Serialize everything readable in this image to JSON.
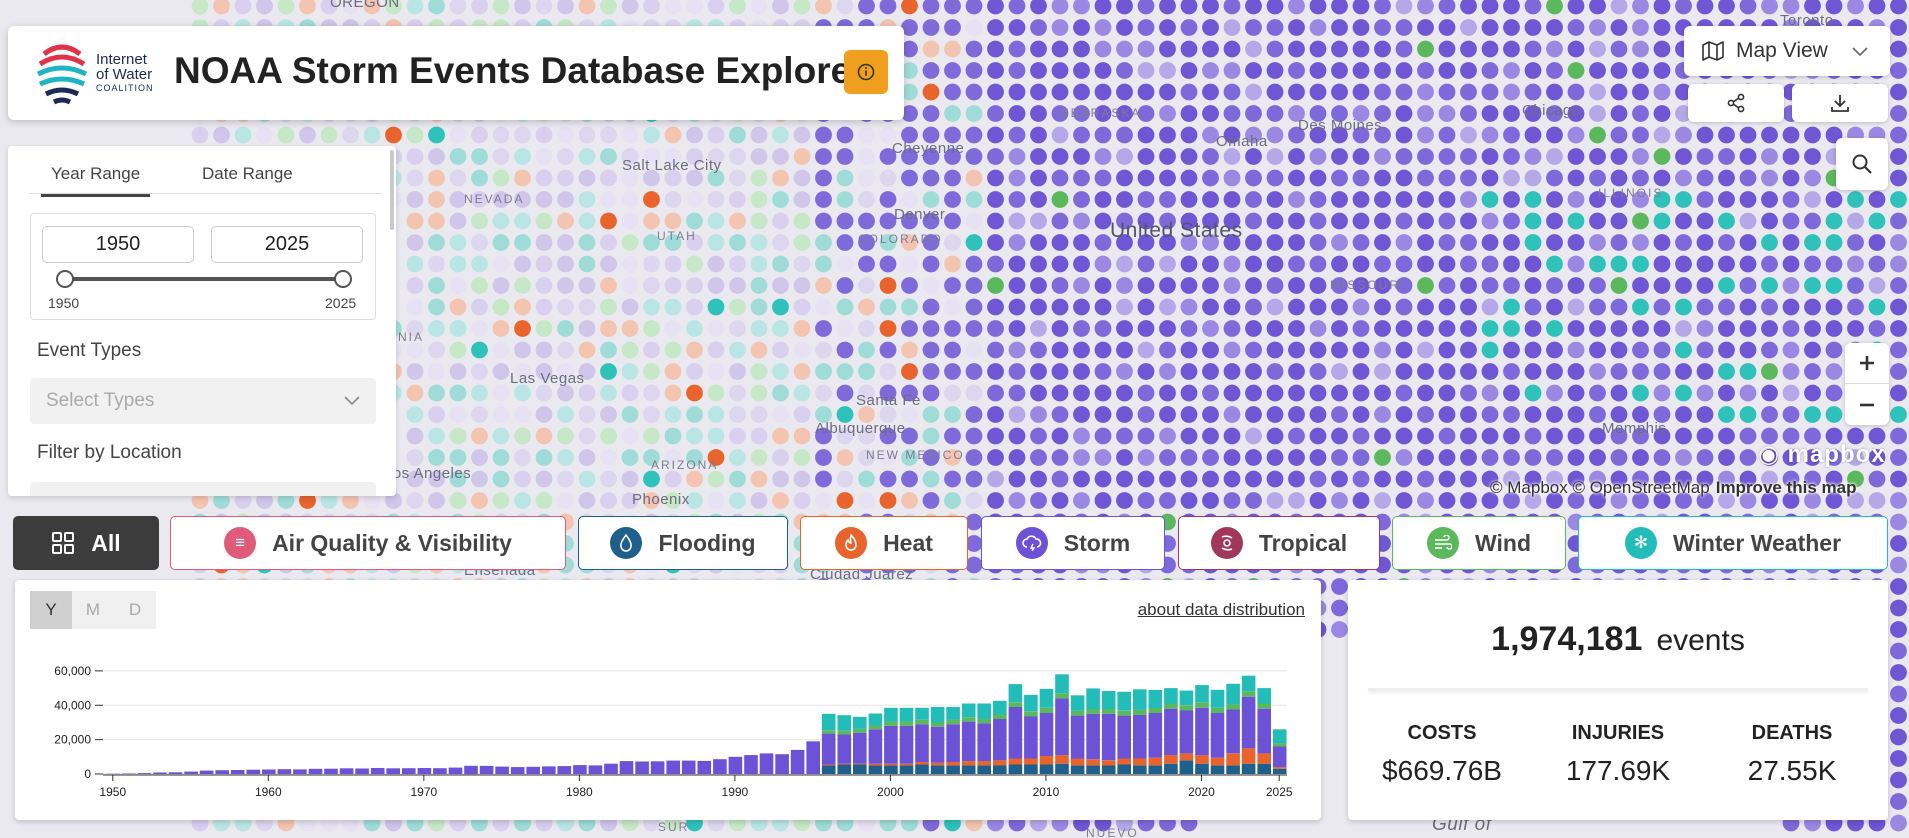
{
  "app": {
    "title": "NOAA Storm Events Database Explorer",
    "logo_lines": [
      "Internet",
      "of Water",
      "COALITION"
    ]
  },
  "filters": {
    "tabs": [
      "Year Range",
      "Date Range"
    ],
    "year_from": "1950",
    "year_to": "2025",
    "slider_min_label": "1950",
    "slider_max_label": "2025",
    "event_types_label": "Event Types",
    "event_types_placeholder": "Select Types",
    "location_label": "Filter by Location"
  },
  "categories": [
    {
      "label": "All",
      "icon": "grid-icon"
    },
    {
      "label": "Air Quality & Visibility",
      "icon": "haze-icon",
      "color": "#e05a7a"
    },
    {
      "label": "Flooding",
      "icon": "droplet-icon",
      "color": "#1e5f8c"
    },
    {
      "label": "Heat",
      "icon": "flame-icon",
      "color": "#e8642c"
    },
    {
      "label": "Storm",
      "icon": "cloud-lightning-icon",
      "color": "#6b52d6"
    },
    {
      "label": "Tropical",
      "icon": "hurricane-icon",
      "color": "#a1385c"
    },
    {
      "label": "Wind",
      "icon": "wind-icon",
      "color": "#5cb85c"
    },
    {
      "label": "Winter Weather",
      "icon": "snowflake-icon",
      "color": "#22bdb8"
    }
  ],
  "map": {
    "view_label": "Map View",
    "attribution": "© Mapbox © OpenStreetMap",
    "improve": "Improve this map",
    "brand": "mapbox",
    "labels": [
      "Salt Lake City",
      "NEVADA",
      "UTAH",
      "Cheyenne",
      "Denver",
      "COLORADO",
      "NEBRASKA",
      "United States",
      "Des Moines",
      "Chicago",
      "Omaha",
      "Las Vegas",
      "Los Angeles",
      "ARIZONA",
      "Phoenix",
      "Santa Fe",
      "Albuquerque",
      "NEW MEXICO",
      "Ensenada",
      "Ciudad Juárez",
      "Toronto",
      "OREGON",
      "ILLINOIS",
      "Memphis",
      "MISSOURI",
      "NIA",
      "SUR",
      "NUEVO",
      "Gulf of"
    ]
  },
  "chart": {
    "granularity": [
      "Y",
      "M",
      "D"
    ],
    "granularity_selected": "Y",
    "about_link": "about data distribution"
  },
  "chart_data": {
    "type": "bar",
    "stacked": true,
    "xlabel": "",
    "ylabel": "",
    "ylim": [
      0,
      70000
    ],
    "yticks": [
      "0",
      "20,000",
      "40,000",
      "60,000"
    ],
    "xticks": [
      "1950",
      "1960",
      "1970",
      "1980",
      "1990",
      "2000",
      "2010",
      "2020",
      "2025"
    ],
    "categories": [
      1950,
      1951,
      1952,
      1953,
      1954,
      1955,
      1956,
      1957,
      1958,
      1959,
      1960,
      1961,
      1962,
      1963,
      1964,
      1965,
      1966,
      1967,
      1968,
      1969,
      1970,
      1971,
      1972,
      1973,
      1974,
      1975,
      1976,
      1977,
      1978,
      1979,
      1980,
      1981,
      1982,
      1983,
      1984,
      1985,
      1986,
      1987,
      1988,
      1989,
      1990,
      1991,
      1992,
      1993,
      1994,
      1995,
      1996,
      1997,
      1998,
      1999,
      2000,
      2001,
      2002,
      2003,
      2004,
      2005,
      2006,
      2007,
      2008,
      2009,
      2010,
      2011,
      2012,
      2013,
      2014,
      2015,
      2016,
      2017,
      2018,
      2019,
      2020,
      2021,
      2022,
      2023,
      2024,
      2025
    ],
    "series": [
      {
        "name": "Flooding",
        "color": "#1e5f8c",
        "values": [
          0,
          0,
          0,
          0,
          0,
          0,
          0,
          0,
          0,
          0,
          0,
          0,
          0,
          0,
          0,
          0,
          0,
          0,
          0,
          0,
          0,
          0,
          0,
          0,
          0,
          0,
          0,
          0,
          0,
          0,
          0,
          0,
          0,
          0,
          0,
          0,
          0,
          0,
          0,
          0,
          0,
          0,
          0,
          0,
          0,
          0,
          5000,
          5500,
          5500,
          5000,
          5000,
          5000,
          5500,
          5000,
          5000,
          5000,
          5000,
          5000,
          5500,
          5500,
          5500,
          6000,
          5000,
          5000,
          5000,
          5500,
          5000,
          5000,
          6000,
          8000,
          6000,
          5000,
          5000,
          6000,
          6000,
          3000
        ]
      },
      {
        "name": "Heat",
        "color": "#e8642c",
        "values": [
          0,
          0,
          0,
          0,
          0,
          0,
          0,
          0,
          0,
          0,
          0,
          0,
          0,
          0,
          0,
          0,
          0,
          0,
          0,
          0,
          0,
          0,
          0,
          0,
          0,
          0,
          0,
          0,
          0,
          0,
          0,
          0,
          0,
          0,
          0,
          0,
          0,
          0,
          0,
          0,
          0,
          0,
          0,
          0,
          0,
          0,
          500,
          500,
          500,
          1000,
          1000,
          1000,
          1500,
          1500,
          2000,
          2500,
          2500,
          3000,
          3500,
          3500,
          5000,
          5000,
          4000,
          3500,
          3000,
          3500,
          4000,
          4500,
          5000,
          4000,
          5000,
          4500,
          7000,
          9000,
          6000,
          1000
        ]
      },
      {
        "name": "Storm",
        "color": "#6b52d6",
        "values": [
          200,
          300,
          500,
          900,
          1000,
          1400,
          2000,
          2200,
          2300,
          2500,
          2600,
          2800,
          2700,
          3000,
          3100,
          3300,
          3200,
          3500,
          3300,
          3400,
          3500,
          3400,
          3700,
          4800,
          4700,
          4300,
          4000,
          4200,
          4400,
          4600,
          5200,
          5000,
          6000,
          7500,
          7300,
          7400,
          7800,
          7800,
          7600,
          8600,
          10000,
          11000,
          12000,
          11500,
          14000,
          19000,
          18000,
          17000,
          18000,
          20000,
          22000,
          22000,
          22000,
          21000,
          22000,
          23000,
          22000,
          24000,
          30000,
          24500,
          25000,
          33000,
          25000,
          26500,
          27000,
          25000,
          25500,
          26000,
          27000,
          25000,
          27500,
          26000,
          25500,
          30000,
          26000,
          12000
        ]
      },
      {
        "name": "Wind",
        "color": "#5cb85c",
        "values": [
          0,
          0,
          0,
          0,
          0,
          0,
          0,
          0,
          0,
          0,
          0,
          0,
          0,
          0,
          0,
          0,
          0,
          0,
          0,
          0,
          0,
          0,
          0,
          0,
          0,
          0,
          0,
          0,
          0,
          0,
          0,
          0,
          0,
          0,
          0,
          0,
          0,
          0,
          0,
          0,
          0,
          0,
          0,
          0,
          0,
          0,
          2000,
          2200,
          2200,
          2200,
          2500,
          2500,
          2500,
          2500,
          2500,
          2500,
          2500,
          2600,
          2800,
          3000,
          3000,
          3000,
          2800,
          2800,
          2800,
          2800,
          2800,
          2900,
          3000,
          3000,
          3200,
          3000,
          3000,
          3200,
          3000,
          2000
        ]
      },
      {
        "name": "Winter Weather",
        "color": "#22bdb8",
        "values": [
          0,
          0,
          0,
          0,
          0,
          0,
          0,
          0,
          0,
          0,
          0,
          0,
          0,
          0,
          0,
          0,
          0,
          0,
          0,
          0,
          0,
          0,
          0,
          0,
          0,
          0,
          0,
          0,
          0,
          0,
          0,
          0,
          0,
          0,
          0,
          0,
          0,
          0,
          0,
          0,
          0,
          0,
          0,
          0,
          0,
          0,
          9500,
          9000,
          7000,
          7000,
          8000,
          8000,
          7000,
          9000,
          7500,
          8000,
          9000,
          8000,
          10500,
          9500,
          11000,
          11000,
          9000,
          12000,
          10500,
          11000,
          12000,
          10500,
          9000,
          8500,
          10000,
          10500,
          12000,
          9000,
          9000,
          8000
        ]
      }
    ]
  },
  "stats": {
    "total_value": "1,974,181",
    "total_unit": "events",
    "costs_label": "COSTS",
    "costs_value": "$669.76B",
    "injuries_label": "INJURIES",
    "injuries_value": "177.69K",
    "deaths_label": "DEATHS",
    "deaths_value": "27.55K"
  },
  "colors": {
    "accent": "#f0a01e",
    "storm": "#6b52d6",
    "panel_dark": "#3c3c3c"
  }
}
